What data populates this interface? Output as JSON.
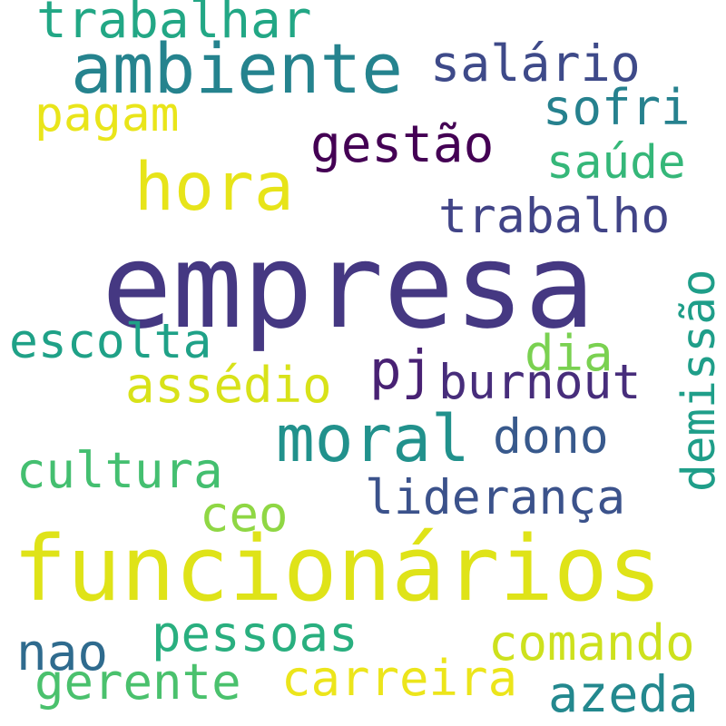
{
  "words": [
    {
      "text": "empresa",
      "color": "#453882"
    },
    {
      "text": "funcionários",
      "color": "#dfe318"
    },
    {
      "text": "ambiente",
      "color": "#25838e"
    },
    {
      "text": "hora",
      "color": "#e7e419"
    },
    {
      "text": "moral",
      "color": "#21918c"
    },
    {
      "text": "trabalhar",
      "color": "#22a785"
    },
    {
      "text": "salário",
      "color": "#3e4a89"
    },
    {
      "text": "pagam",
      "color": "#e9e51a"
    },
    {
      "text": "sofri",
      "color": "#26818e"
    },
    {
      "text": "gestão",
      "color": "#440154"
    },
    {
      "text": "saúde",
      "color": "#35b779"
    },
    {
      "text": "trabalho",
      "color": "#414487"
    },
    {
      "text": "demissão",
      "color": "#1f9e89"
    },
    {
      "text": "escolta",
      "color": "#1fa187"
    },
    {
      "text": "dia",
      "color": "#7ad151"
    },
    {
      "text": "pj",
      "color": "#482173"
    },
    {
      "text": "assédio",
      "color": "#d8e219"
    },
    {
      "text": "burnout",
      "color": "#472d7b"
    },
    {
      "text": "dono",
      "color": "#38598c"
    },
    {
      "text": "cultura",
      "color": "#44bf70"
    },
    {
      "text": "liderança",
      "color": "#3b528b"
    },
    {
      "text": "ceo",
      "color": "#8fd744"
    },
    {
      "text": "pessoas",
      "color": "#29af7f"
    },
    {
      "text": "nao",
      "color": "#2f6b8e"
    },
    {
      "text": "comando",
      "color": "#cde11d"
    },
    {
      "text": "gerente",
      "color": "#4ac16d"
    },
    {
      "text": "carreira",
      "color": "#ece51b"
    },
    {
      "text": "azeda",
      "color": "#23888e"
    }
  ]
}
